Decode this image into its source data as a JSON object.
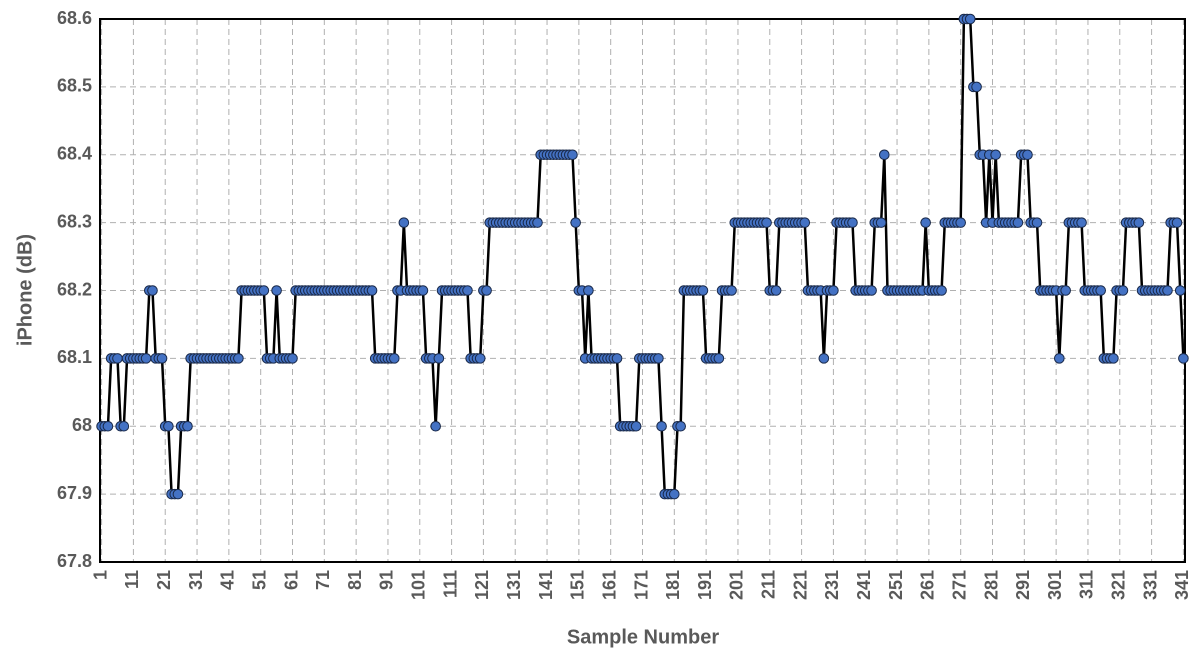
{
  "chart_data": {
    "type": "line",
    "x_label": "Sample Number",
    "y_label": "iPhone (dB)",
    "categories": [
      "1",
      null,
      null,
      null,
      null,
      null,
      null,
      null,
      null,
      null,
      "11",
      null,
      null,
      null,
      null,
      null,
      null,
      null,
      null,
      null,
      "21",
      null,
      null,
      null,
      null,
      null,
      null,
      null,
      null,
      null,
      "31",
      null,
      null,
      null,
      null,
      null,
      null,
      null,
      null,
      null,
      "41",
      null,
      null,
      null,
      null,
      null,
      null,
      null,
      null,
      null,
      "51",
      null,
      null,
      null,
      null,
      null,
      null,
      null,
      null,
      null,
      "61",
      null,
      null,
      null,
      null,
      null,
      null,
      null,
      null,
      null,
      "71",
      null,
      null,
      null,
      null,
      null,
      null,
      null,
      null,
      null,
      "81",
      null,
      null,
      null,
      null,
      null,
      null,
      null,
      null,
      null,
      "91",
      null,
      null,
      null,
      null,
      null,
      null,
      null,
      null,
      null,
      "101",
      null,
      null,
      null,
      null,
      null,
      null,
      null,
      null,
      null,
      "111",
      null,
      null,
      null,
      null,
      null,
      null,
      null,
      null,
      null,
      "121",
      null,
      null,
      null,
      null,
      null,
      null,
      null,
      null,
      null,
      "131",
      null,
      null,
      null,
      null,
      null,
      null,
      null,
      null,
      null,
      "141",
      null,
      null,
      null,
      null,
      null,
      null,
      null,
      null,
      null,
      "151",
      null,
      null,
      null,
      null,
      null,
      null,
      null,
      null,
      null,
      "161",
      null,
      null,
      null,
      null,
      null,
      null,
      null,
      null,
      null,
      "171",
      null,
      null,
      null,
      null,
      null,
      null,
      null,
      null,
      null,
      "181",
      null,
      null,
      null,
      null,
      null,
      null,
      null,
      null,
      null,
      "191",
      null,
      null,
      null,
      null,
      null,
      null,
      null,
      null,
      null,
      "201",
      null,
      null,
      null,
      null,
      null,
      null,
      null,
      null,
      null,
      "211",
      null,
      null,
      null,
      null,
      null,
      null,
      null,
      null,
      null,
      "221",
      null,
      null,
      null,
      null,
      null,
      null,
      null,
      null,
      null,
      "231",
      null,
      null,
      null,
      null,
      null,
      null,
      null,
      null,
      null,
      "241",
      null,
      null,
      null,
      null,
      null,
      null,
      null,
      null,
      null,
      "251",
      null,
      null,
      null,
      null,
      null,
      null,
      null,
      null,
      null,
      "261",
      null,
      null,
      null,
      null,
      null,
      null,
      null,
      null,
      null,
      "271",
      null,
      null,
      null,
      null,
      null,
      null,
      null,
      null,
      null,
      "281",
      null,
      null,
      null,
      null,
      null,
      null,
      null,
      null,
      null,
      "291",
      null,
      null,
      null,
      null,
      null,
      null,
      null,
      null,
      null,
      "301",
      null,
      null,
      null,
      null,
      null,
      null,
      null,
      null,
      null,
      "311",
      null,
      null,
      null,
      null,
      null,
      null,
      null,
      null,
      null,
      "321",
      null,
      null,
      null,
      null,
      null,
      null,
      null,
      null,
      null,
      "331",
      null,
      null,
      null,
      null,
      null,
      null,
      null,
      null,
      null,
      "341"
    ],
    "values": [
      68,
      68,
      68,
      68.1,
      68.1,
      68.1,
      68,
      68,
      68.1,
      68.1,
      68.1,
      68.1,
      68.1,
      68.1,
      68.1,
      68.2,
      68.2,
      68.1,
      68.1,
      68.1,
      68,
      68,
      67.9,
      67.9,
      67.9,
      68,
      68,
      68,
      68.1,
      68.1,
      68.1,
      68.1,
      68.1,
      68.1,
      68.1,
      68.1,
      68.1,
      68.1,
      68.1,
      68.1,
      68.1,
      68.1,
      68.1,
      68.1,
      68.2,
      68.2,
      68.2,
      68.2,
      68.2,
      68.2,
      68.2,
      68.2,
      68.1,
      68.1,
      68.1,
      68.2,
      68.1,
      68.1,
      68.1,
      68.1,
      68.1,
      68.2,
      68.2,
      68.2,
      68.2,
      68.2,
      68.2,
      68.2,
      68.2,
      68.2,
      68.2,
      68.2,
      68.2,
      68.2,
      68.2,
      68.2,
      68.2,
      68.2,
      68.2,
      68.2,
      68.2,
      68.2,
      68.2,
      68.2,
      68.2,
      68.2,
      68.1,
      68.1,
      68.1,
      68.1,
      68.1,
      68.1,
      68.1,
      68.2,
      68.2,
      68.3,
      68.2,
      68.2,
      68.2,
      68.2,
      68.2,
      68.2,
      68.1,
      68.1,
      68.1,
      68,
      68.1,
      68.2,
      68.2,
      68.2,
      68.2,
      68.2,
      68.2,
      68.2,
      68.2,
      68.2,
      68.1,
      68.1,
      68.1,
      68.1,
      68.2,
      68.2,
      68.3,
      68.3,
      68.3,
      68.3,
      68.3,
      68.3,
      68.3,
      68.3,
      68.3,
      68.3,
      68.3,
      68.3,
      68.3,
      68.3,
      68.3,
      68.3,
      68.4,
      68.4,
      68.4,
      68.4,
      68.4,
      68.4,
      68.4,
      68.4,
      68.4,
      68.4,
      68.4,
      68.3,
      68.2,
      68.2,
      68.1,
      68.2,
      68.1,
      68.1,
      68.1,
      68.1,
      68.1,
      68.1,
      68.1,
      68.1,
      68.1,
      68,
      68,
      68,
      68,
      68,
      68,
      68.1,
      68.1,
      68.1,
      68.1,
      68.1,
      68.1,
      68.1,
      68,
      67.9,
      67.9,
      67.9,
      67.9,
      68,
      68,
      68.2,
      68.2,
      68.2,
      68.2,
      68.2,
      68.2,
      68.2,
      68.1,
      68.1,
      68.1,
      68.1,
      68.1,
      68.2,
      68.2,
      68.2,
      68.2,
      68.3,
      68.3,
      68.3,
      68.3,
      68.3,
      68.3,
      68.3,
      68.3,
      68.3,
      68.3,
      68.3,
      68.2,
      68.2,
      68.2,
      68.3,
      68.3,
      68.3,
      68.3,
      68.3,
      68.3,
      68.3,
      68.3,
      68.3,
      68.2,
      68.2,
      68.2,
      68.2,
      68.2,
      68.1,
      68.2,
      68.2,
      68.2,
      68.3,
      68.3,
      68.3,
      68.3,
      68.3,
      68.3,
      68.2,
      68.2,
      68.2,
      68.2,
      68.2,
      68.2,
      68.3,
      68.3,
      68.3,
      68.4,
      68.2,
      68.2,
      68.2,
      68.2,
      68.2,
      68.2,
      68.2,
      68.2,
      68.2,
      68.2,
      68.2,
      68.2,
      68.3,
      68.2,
      68.2,
      68.2,
      68.2,
      68.2,
      68.3,
      68.3,
      68.3,
      68.3,
      68.3,
      68.3,
      68.6,
      68.6,
      68.6,
      68.5,
      68.5,
      68.4,
      68.4,
      68.3,
      68.4,
      68.3,
      68.4,
      68.3,
      68.3,
      68.3,
      68.3,
      68.3,
      68.3,
      68.3,
      68.4,
      68.4,
      68.4,
      68.3,
      68.3,
      68.3,
      68.2,
      68.2,
      68.2,
      68.2,
      68.2,
      68.2,
      68.1,
      68.2,
      68.2,
      68.3,
      68.3,
      68.3,
      68.3,
      68.3,
      68.2,
      68.2,
      68.2,
      68.2,
      68.2,
      68.2,
      68.1,
      68.1,
      68.1,
      68.1,
      68.2,
      68.2,
      68.2,
      68.3,
      68.3,
      68.3,
      68.3,
      68.3,
      68.2,
      68.2,
      68.2,
      68.2,
      68.2,
      68.2,
      68.2,
      68.2,
      68.2,
      68.3,
      68.3,
      68.3,
      68.2,
      68.1
    ],
    "color": "#4472c4",
    "ylim": [
      67.8,
      68.6
    ],
    "yticks": [
      67.8,
      67.9,
      68,
      68.1,
      68.2,
      68.3,
      68.4,
      68.5,
      68.6
    ],
    "grid": true
  }
}
